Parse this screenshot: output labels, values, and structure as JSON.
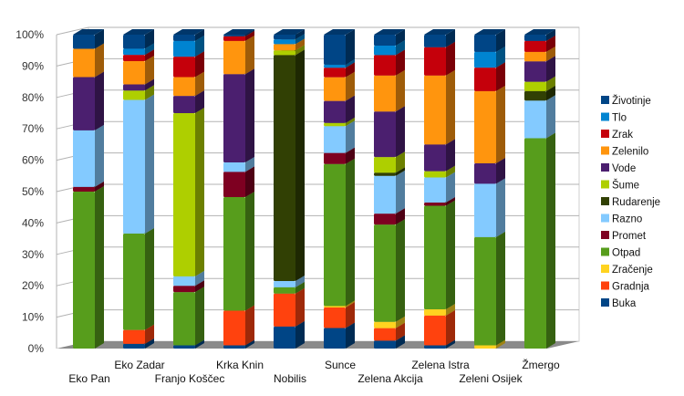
{
  "chart_data": {
    "type": "bar",
    "stacked": "percent",
    "style": "3d",
    "title": "",
    "xlabel": "",
    "ylabel": "",
    "ylim": [
      0,
      100
    ],
    "yticks": [
      "0%",
      "10%",
      "20%",
      "30%",
      "40%",
      "50%",
      "60%",
      "70%",
      "80%",
      "90%",
      "100%"
    ],
    "grid": true,
    "legend_position": "right",
    "categories": [
      "Eko Pan",
      "Eko Zadar",
      "Franjo Koščec",
      "Krka Knin",
      "Nobilis",
      "Sunce",
      "Zelena Akcija",
      "Zelena Istra",
      "Zeleni Osijek",
      "Žmergo"
    ],
    "series": [
      {
        "name": "Buka",
        "color": "#004586",
        "values": [
          0,
          1.5,
          1,
          1,
          7,
          6.5,
          2.5,
          1,
          0,
          0
        ]
      },
      {
        "name": "Gradnja",
        "color": "#ff420e",
        "values": [
          0,
          4.5,
          0,
          11,
          10.5,
          6.5,
          4,
          9.5,
          0,
          0
        ]
      },
      {
        "name": "Zračenje",
        "color": "#ffd320",
        "values": [
          0,
          0,
          0,
          0,
          0,
          0.5,
          2,
          2,
          1,
          0
        ]
      },
      {
        "name": "Otpad",
        "color": "#579d1c",
        "values": [
          50,
          31,
          17,
          36,
          2,
          45,
          31,
          33,
          34.5,
          67
        ]
      },
      {
        "name": "Promet",
        "color": "#7e0021",
        "values": [
          1.5,
          0,
          2,
          8,
          0,
          3.5,
          3.5,
          1,
          0,
          0
        ]
      },
      {
        "name": "Razno",
        "color": "#83caff",
        "values": [
          18,
          43,
          3,
          3,
          2,
          8.5,
          12,
          8,
          17,
          12
        ]
      },
      {
        "name": "Rudarenje",
        "color": "#314004",
        "values": [
          0,
          0,
          0,
          0,
          72,
          0,
          1,
          0,
          0,
          3
        ]
      },
      {
        "name": "Šume",
        "color": "#aecf00",
        "values": [
          0,
          3,
          52,
          0,
          1.5,
          1,
          5,
          2,
          0,
          3
        ]
      },
      {
        "name": "Vode",
        "color": "#4b1f6f",
        "values": [
          17,
          2,
          5.5,
          28,
          0,
          7,
          14.5,
          8.5,
          6.5,
          6.5
        ]
      },
      {
        "name": "Zelenilo",
        "color": "#ff950e",
        "values": [
          9,
          7.5,
          6,
          10.5,
          2,
          7.5,
          11.5,
          22,
          23,
          3
        ]
      },
      {
        "name": "Zrak",
        "color": "#c5000b",
        "values": [
          0,
          2,
          6.5,
          1.5,
          0,
          3,
          6.5,
          9,
          7.5,
          3.5
        ]
      },
      {
        "name": "Tlo",
        "color": "#0084d1",
        "values": [
          0,
          2,
          5,
          0,
          1.5,
          1,
          3,
          0,
          5,
          0
        ]
      },
      {
        "name": "Životinje",
        "color": "#004586",
        "values": [
          4.5,
          4.5,
          2,
          0.5,
          1.5,
          9.5,
          3.5,
          4,
          5.5,
          2
        ]
      }
    ]
  }
}
